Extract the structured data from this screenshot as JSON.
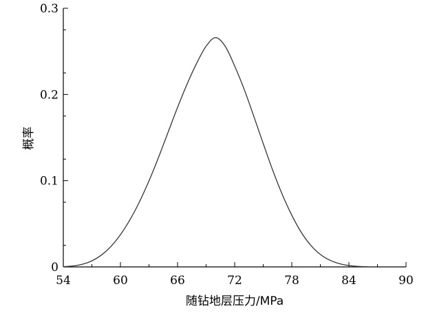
{
  "chart_data": {
    "type": "line",
    "title": "",
    "xlabel": "随钻地层压力/MPa",
    "ylabel": "概率",
    "xlim": [
      54,
      90
    ],
    "ylim": [
      0,
      0.3
    ],
    "x_ticks": [
      54,
      60,
      66,
      72,
      78,
      84,
      90
    ],
    "x_tick_labels": [
      "54",
      "60",
      "66",
      "72",
      "78",
      "84",
      "90"
    ],
    "y_ticks": [
      0,
      0.1,
      0.2,
      0.3
    ],
    "y_tick_labels": [
      "0",
      "0.1",
      "0.2",
      "0.3"
    ],
    "grid": false,
    "series": [
      {
        "x": [
          54,
          55,
          56,
          57,
          58,
          59,
          60,
          61,
          62,
          63,
          64,
          65,
          66,
          67,
          68,
          69,
          70,
          71,
          72,
          73,
          74,
          75,
          76,
          77,
          78,
          79,
          80,
          81,
          82,
          83,
          84,
          85,
          86
        ],
        "values": [
          0.0003,
          0.0011,
          0.0031,
          0.007,
          0.0137,
          0.0237,
          0.0374,
          0.0547,
          0.0755,
          0.0998,
          0.127,
          0.156,
          0.185,
          0.212,
          0.236,
          0.256,
          0.266,
          0.256,
          0.233,
          0.206,
          0.175,
          0.143,
          0.112,
          0.084,
          0.06,
          0.04,
          0.025,
          0.0145,
          0.0078,
          0.0038,
          0.0016,
          0.0006,
          0.0002
        ]
      }
    ],
    "line_color": "#333333"
  }
}
